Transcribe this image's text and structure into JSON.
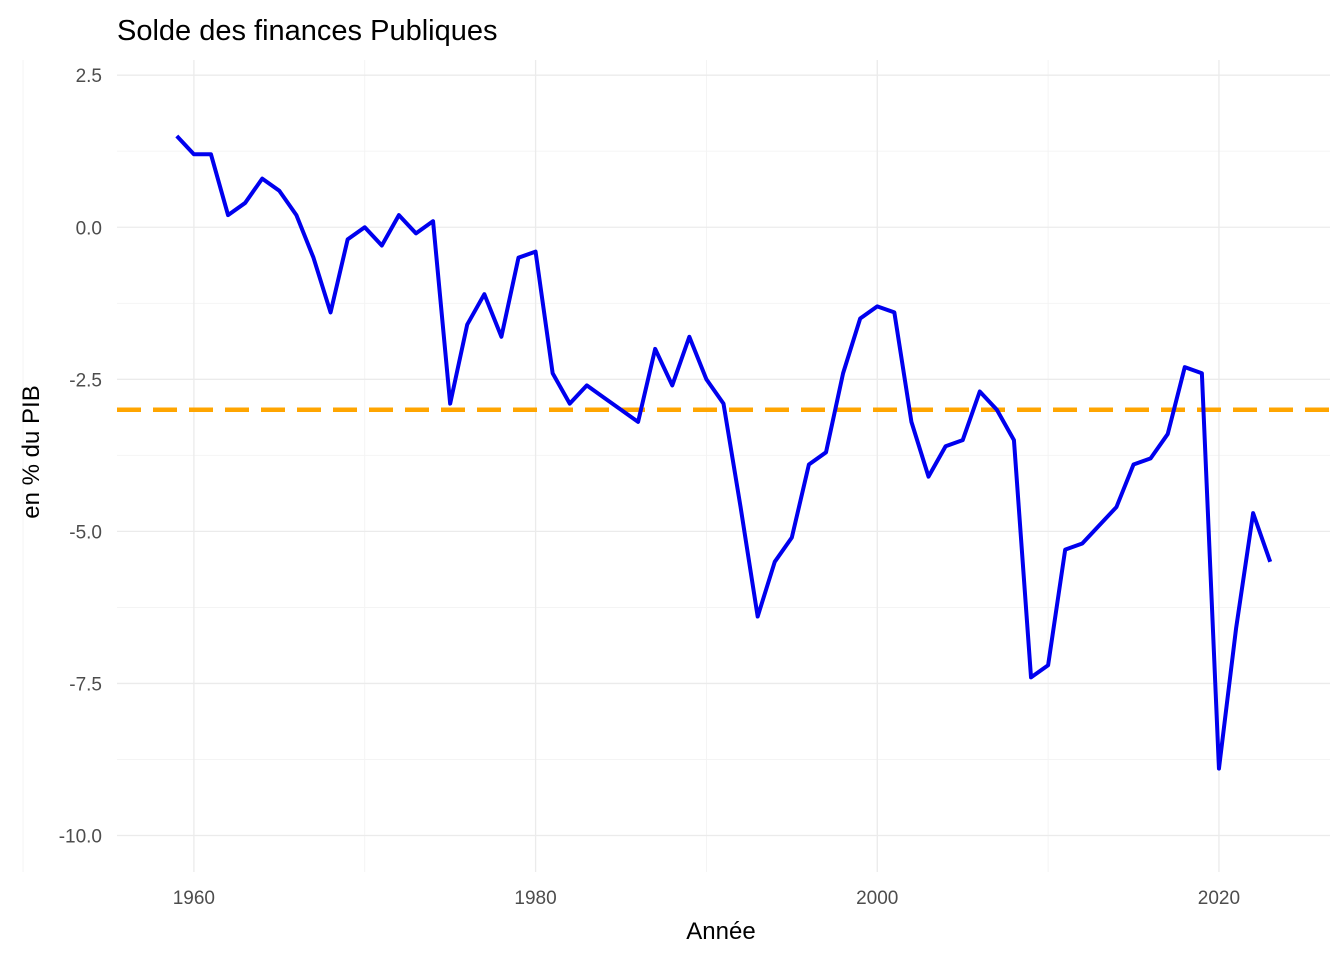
{
  "chart_data": {
    "type": "line",
    "title": "Solde des finances Publiques",
    "xlabel": "Année",
    "ylabel": "en % du PIB",
    "xlim": [
      1955.5,
      2026.5
    ],
    "ylim": [
      -10.6,
      2.75
    ],
    "x_ticks": [
      1960,
      1980,
      2000,
      2020
    ],
    "y_ticks": [
      2.5,
      0.0,
      -2.5,
      -5.0,
      -7.5,
      -10.0
    ],
    "x_tick_labels": [
      "1960",
      "1980",
      "2000",
      "2020"
    ],
    "y_tick_labels": [
      "2.5",
      "0.0",
      "-2.5",
      "-5.0",
      "-7.5",
      "-10.0"
    ],
    "grid": true,
    "reference_line": {
      "y": -3.0,
      "color": "#FFA500",
      "style": "dashed"
    },
    "series": [
      {
        "color": "#0000EE",
        "x": [
          1959,
          1960,
          1961,
          1962,
          1963,
          1964,
          1965,
          1966,
          1967,
          1968,
          1969,
          1970,
          1971,
          1972,
          1973,
          1974,
          1975,
          1976,
          1977,
          1978,
          1979,
          1980,
          1981,
          1982,
          1983,
          1984,
          1985,
          1986,
          1987,
          1988,
          1989,
          1990,
          1991,
          1992,
          1993,
          1994,
          1995,
          1996,
          1997,
          1998,
          1999,
          2000,
          2001,
          2002,
          2003,
          2004,
          2005,
          2006,
          2007,
          2008,
          2009,
          2010,
          2011,
          2012,
          2013,
          2014,
          2015,
          2016,
          2017,
          2018,
          2019,
          2020,
          2021,
          2022,
          2023
        ],
        "values": [
          1.5,
          1.2,
          1.2,
          0.2,
          0.4,
          0.8,
          0.6,
          0.2,
          -0.5,
          -1.4,
          -0.2,
          0.0,
          -0.3,
          0.2,
          -0.1,
          0.1,
          -2.9,
          -1.6,
          -1.1,
          -1.8,
          -0.5,
          -0.4,
          -2.4,
          -2.9,
          -2.6,
          -2.8,
          -3.0,
          -3.2,
          -2.0,
          -2.6,
          -1.8,
          -2.5,
          -2.9,
          -4.6,
          -6.4,
          -5.5,
          -5.1,
          -3.9,
          -3.7,
          -2.4,
          -1.5,
          -1.3,
          -1.4,
          -3.2,
          -4.1,
          -3.6,
          -3.5,
          -2.7,
          -3.0,
          -3.5,
          -7.4,
          -7.2,
          -5.3,
          -5.2,
          -4.9,
          -4.6,
          -3.9,
          -3.8,
          -3.4,
          -2.3,
          -2.4,
          -8.9,
          -6.6,
          -4.7,
          -5.5
        ]
      }
    ]
  }
}
